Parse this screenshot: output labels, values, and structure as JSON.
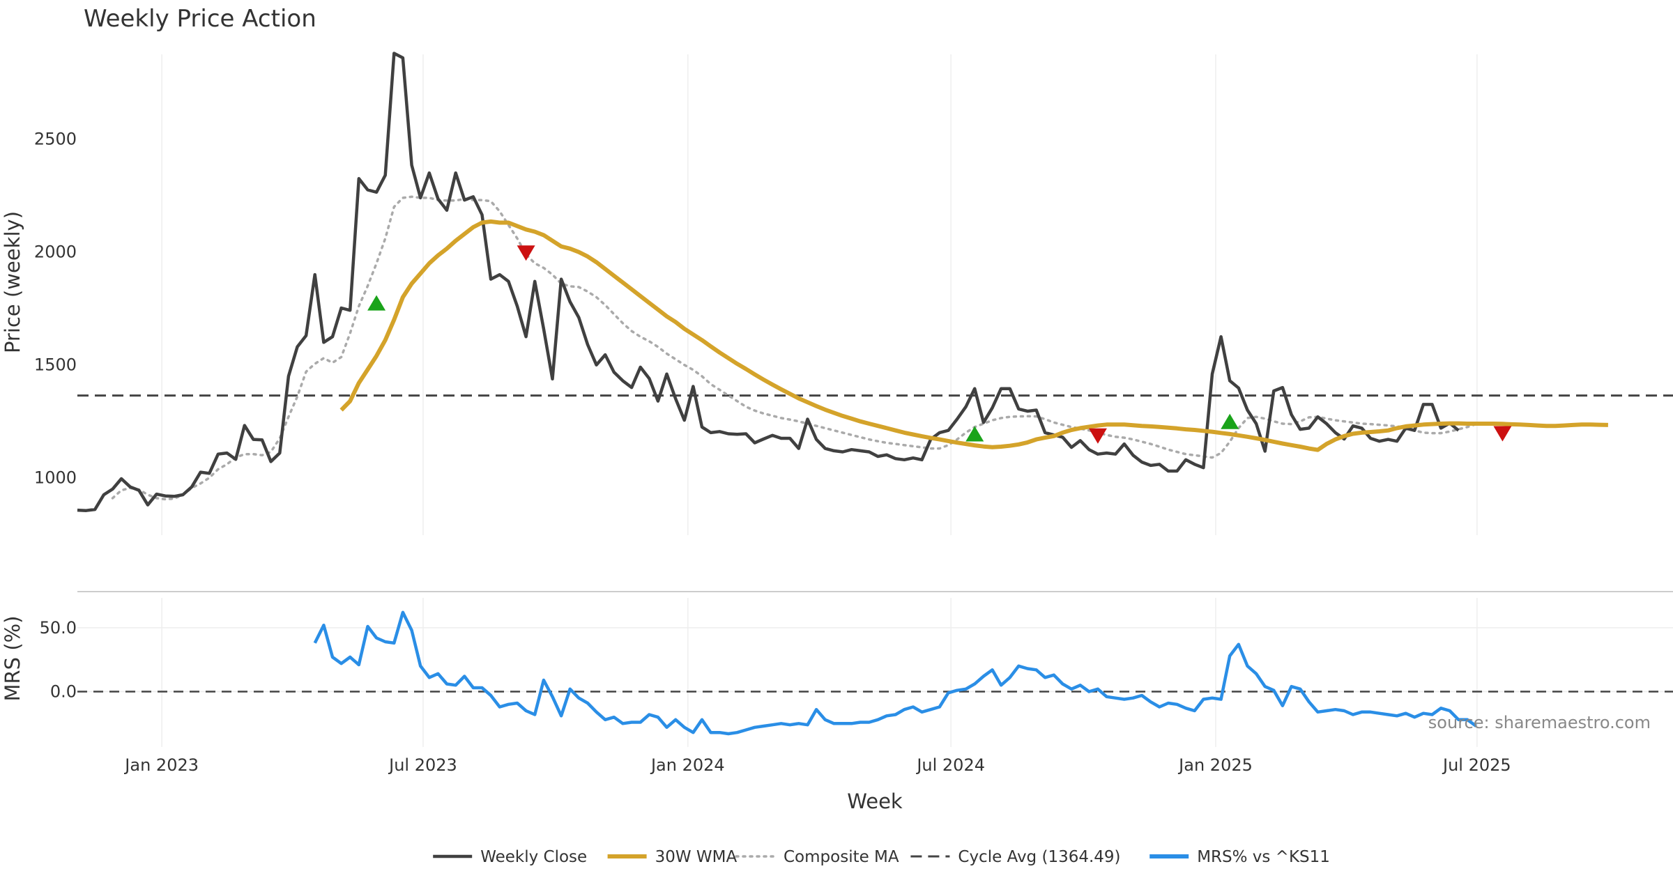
{
  "chart_data": {
    "type": "line",
    "title": "Weekly Price Action",
    "xlabel": "Week",
    "source_note": "source: sharemaestro.com",
    "x_tick_labels": [
      "Jan 2023",
      "Jul 2023",
      "Jan 2024",
      "Jul 2024",
      "Jan 2025",
      "Jul 2025"
    ],
    "x_tick_weeks": [
      9.6,
      39.3,
      69.4,
      99.3,
      129.4,
      159.1
    ],
    "week_count": 180,
    "colors": {
      "close": "#404040",
      "wma": "#d4a32a",
      "composite": "#aaaaaa",
      "cycle": "#444444",
      "mrs": "#2a8ee6",
      "buy": "#1aa31a",
      "sell": "#cc1111",
      "grid": "#eeeeee"
    },
    "price_panel": {
      "ylabel": "Price (weekly)",
      "ylim": [
        740,
        2900
      ],
      "y_ticks": [
        1000,
        1500,
        2000,
        2500
      ],
      "cycle_avg": 1364.49,
      "series": [
        {
          "name": "Weekly Close",
          "start_week": 0,
          "values": [
            857,
            855,
            860,
            925,
            950,
            996,
            960,
            945,
            880,
            928,
            920,
            918,
            925,
            960,
            1025,
            1020,
            1105,
            1110,
            1082,
            1232,
            1170,
            1168,
            1072,
            1110,
            1450,
            1580,
            1630,
            1900,
            1600,
            1625,
            1752,
            1742,
            2325,
            2275,
            2265,
            2340,
            2880,
            2860,
            2385,
            2240,
            2350,
            2235,
            2185,
            2350,
            2230,
            2245,
            2165,
            1880,
            1900,
            1870,
            1760,
            1625,
            1870,
            1660,
            1438,
            1880,
            1780,
            1710,
            1590,
            1500,
            1545,
            1468,
            1430,
            1400,
            1490,
            1440,
            1340,
            1460,
            1350,
            1255,
            1405,
            1225,
            1200,
            1205,
            1195,
            1193,
            1195,
            1155,
            1172,
            1188,
            1175,
            1175,
            1130,
            1260,
            1170,
            1130,
            1120,
            1115,
            1125,
            1120,
            1115,
            1095,
            1102,
            1085,
            1080,
            1088,
            1080,
            1170,
            1200,
            1210,
            1260,
            1315,
            1395,
            1245,
            1310,
            1395,
            1395,
            1305,
            1295,
            1300,
            1200,
            1190,
            1180,
            1135,
            1165,
            1125,
            1105,
            1110,
            1105,
            1150,
            1100,
            1070,
            1055,
            1060,
            1030,
            1030,
            1080,
            1060,
            1045,
            1460,
            1625,
            1430,
            1398,
            1300,
            1240,
            1118,
            1385,
            1400,
            1280,
            1215,
            1220,
            1270,
            1240,
            1200,
            1172,
            1230,
            1220,
            1175,
            1162,
            1170,
            1162,
            1220,
            1210,
            1325,
            1325,
            1220,
            1242,
            1210
          ]
        },
        {
          "name": "30W WMA",
          "start_week": 30,
          "values": [
            1300,
            1340,
            1420,
            1480,
            1540,
            1610,
            1700,
            1800,
            1860,
            1905,
            1950,
            1985,
            2015,
            2050,
            2080,
            2110,
            2130,
            2135,
            2130,
            2130,
            2115,
            2100,
            2090,
            2075,
            2050,
            2025,
            2015,
            2000,
            1980,
            1955,
            1925,
            1895,
            1865,
            1835,
            1805,
            1775,
            1745,
            1715,
            1690,
            1660,
            1635,
            1610,
            1582,
            1555,
            1530,
            1505,
            1482,
            1458,
            1435,
            1413,
            1392,
            1372,
            1352,
            1335,
            1318,
            1302,
            1288,
            1274,
            1262,
            1250,
            1240,
            1230,
            1220,
            1210,
            1200,
            1192,
            1184,
            1177,
            1170,
            1163,
            1156,
            1150,
            1144,
            1139,
            1136,
            1138,
            1142,
            1148,
            1157,
            1170,
            1178,
            1185,
            1200,
            1212,
            1220,
            1226,
            1232,
            1236,
            1236,
            1236,
            1233,
            1230,
            1228,
            1225,
            1222,
            1219,
            1215,
            1212,
            1208,
            1204,
            1199,
            1194,
            1188,
            1182,
            1175,
            1168,
            1160,
            1152,
            1145,
            1138,
            1130,
            1124,
            1150,
            1170,
            1185,
            1195,
            1200,
            1203,
            1206,
            1210,
            1220,
            1228,
            1232,
            1236,
            1238,
            1240,
            1241,
            1241,
            1240,
            1240,
            1240,
            1240,
            1239,
            1237,
            1236,
            1234,
            1232,
            1230,
            1230,
            1232,
            1234,
            1236,
            1236,
            1235,
            1234
          ]
        },
        {
          "name": "Composite MA",
          "start_week": 4,
          "values": [
            910,
            945,
            955,
            948,
            925,
            910,
            905,
            908,
            925,
            955,
            975,
            1000,
            1038,
            1060,
            1090,
            1105,
            1105,
            1100,
            1115,
            1175,
            1270,
            1360,
            1470,
            1505,
            1530,
            1510,
            1535,
            1640,
            1760,
            1850,
            1950,
            2060,
            2200,
            2240,
            2245,
            2240,
            2240,
            2230,
            2228,
            2228,
            2235,
            2230,
            2230,
            2225,
            2180,
            2120,
            2060,
            1990,
            1950,
            1930,
            1900,
            1860,
            1848,
            1845,
            1825,
            1800,
            1765,
            1725,
            1685,
            1650,
            1625,
            1605,
            1580,
            1550,
            1525,
            1500,
            1478,
            1450,
            1415,
            1390,
            1365,
            1340,
            1315,
            1298,
            1285,
            1275,
            1265,
            1258,
            1250,
            1240,
            1230,
            1220,
            1210,
            1200,
            1190,
            1180,
            1170,
            1162,
            1155,
            1150,
            1145,
            1140,
            1135,
            1130,
            1130,
            1145,
            1170,
            1200,
            1225,
            1240,
            1255,
            1265,
            1270,
            1272,
            1273,
            1272,
            1260,
            1245,
            1235,
            1225,
            1218,
            1210,
            1200,
            1190,
            1182,
            1178,
            1170,
            1160,
            1150,
            1138,
            1125,
            1115,
            1105,
            1100,
            1095,
            1090,
            1110,
            1160,
            1220,
            1265,
            1270,
            1262,
            1250,
            1240,
            1238,
            1250,
            1268,
            1270,
            1262,
            1255,
            1250,
            1245,
            1240,
            1238,
            1235,
            1232,
            1228,
            1220,
            1210,
            1200,
            1198,
            1198,
            1205,
            1215,
            1225,
            1238,
            1240
          ]
        }
      ],
      "buy_signals": [
        {
          "week": 34,
          "price": 1775
        },
        {
          "week": 102,
          "price": 1195
        },
        {
          "week": 131,
          "price": 1250
        }
      ],
      "sell_signals": [
        {
          "week": 51,
          "price": 1995
        },
        {
          "week": 116,
          "price": 1185
        },
        {
          "week": 162,
          "price": 1195
        }
      ]
    },
    "mrs_panel": {
      "ylabel": "MRS (%)",
      "ylim": [
        -45,
        75
      ],
      "y_ticks": [
        0.0,
        50.0
      ],
      "y_tick_labels": [
        "0.0",
        "50.0"
      ],
      "zero_line": 0,
      "series": [
        {
          "name": "MRS% vs ^KS11",
          "start_week": 27,
          "values": [
            38,
            52,
            27,
            22,
            27,
            21,
            51,
            42,
            39,
            38,
            62,
            48,
            20,
            11,
            14,
            6,
            5,
            12,
            3,
            3,
            -3,
            -12,
            -10,
            -9,
            -15,
            -18,
            9,
            -4,
            -19,
            2,
            -5,
            -9,
            -16,
            -22,
            -20,
            -25,
            -24,
            -24,
            -18,
            -20,
            -28,
            -22,
            -28,
            -32,
            -22,
            -32,
            -32,
            -33,
            -32,
            -30,
            -28,
            -27,
            -26,
            -25,
            -26,
            -25,
            -26,
            -14,
            -22,
            -25,
            -25,
            -25,
            -24,
            -24,
            -22,
            -19,
            -18,
            -14,
            -12,
            -16,
            -14,
            -12,
            -1,
            1,
            2,
            6,
            12,
            17,
            5,
            11,
            20,
            18,
            17,
            11,
            13,
            6,
            2,
            5,
            0,
            2,
            -4,
            -5,
            -6,
            -5,
            -3,
            -8,
            -12,
            -9,
            -10,
            -13,
            -15,
            -6,
            -5,
            -6,
            28,
            37,
            20,
            14,
            4,
            1,
            -11,
            4,
            2,
            -8,
            -16,
            -15,
            -14,
            -15,
            -18,
            -16,
            -16,
            -17,
            -18,
            -19,
            -17,
            -20,
            -17,
            -18,
            -13,
            -15,
            -22,
            -22,
            -27
          ]
        }
      ]
    },
    "legend": [
      {
        "label": "Weekly Close",
        "style": "solid",
        "color_key": "close"
      },
      {
        "label": "30W WMA",
        "style": "solid-thick",
        "color_key": "wma"
      },
      {
        "label": "Composite MA",
        "style": "dotted",
        "color_key": "composite"
      },
      {
        "label": "Cycle Avg (1364.49)",
        "style": "dashed",
        "color_key": "cycle"
      },
      {
        "label": "MRS% vs ^KS11",
        "style": "solid-thick",
        "color_key": "mrs"
      }
    ]
  }
}
